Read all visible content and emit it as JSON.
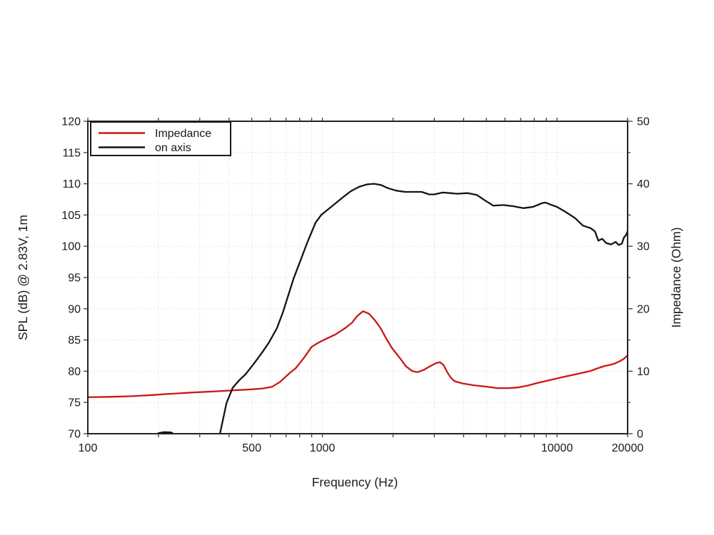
{
  "chart_data": {
    "type": "line",
    "title": "",
    "xlabel": "Frequency (Hz)",
    "ylabel_left": "SPL (dB) @ 2.83V, 1m",
    "ylabel_right": "Impedance (Ohm)",
    "x_scale": "log",
    "x_range": [
      100,
      20000
    ],
    "y_left_range": [
      70,
      120
    ],
    "y_right_range": [
      0,
      50
    ],
    "x_ticks": [
      100,
      200,
      300,
      400,
      500,
      600,
      700,
      800,
      900,
      1000,
      2000,
      3000,
      4000,
      5000,
      6000,
      7000,
      8000,
      9000,
      10000,
      20000
    ],
    "x_ticks_labeled": [
      [
        100,
        "100"
      ],
      [
        500,
        "500"
      ],
      [
        1000,
        "1000"
      ],
      [
        10000,
        "10000"
      ],
      [
        20000,
        "20000"
      ]
    ],
    "x_grid": [
      200,
      300,
      400,
      500,
      600,
      700,
      800,
      900,
      1000,
      2000,
      3000,
      4000,
      5000,
      6000,
      7000,
      8000,
      9000,
      10000
    ],
    "y_left_ticks_labeled": [
      [
        70,
        "70"
      ],
      [
        75,
        "75"
      ],
      [
        80,
        "80"
      ],
      [
        85,
        "85"
      ],
      [
        90,
        "90"
      ],
      [
        95,
        "95"
      ],
      [
        100,
        "100"
      ],
      [
        105,
        "105"
      ],
      [
        110,
        "110"
      ],
      [
        115,
        "115"
      ],
      [
        120,
        "120"
      ]
    ],
    "y_left_grid": [
      75,
      80,
      85,
      90,
      95,
      100,
      105,
      110,
      115
    ],
    "y_right_ticks_labeled": [
      [
        0,
        "0"
      ],
      [
        10,
        "10"
      ],
      [
        20,
        "20"
      ],
      [
        30,
        "30"
      ],
      [
        40,
        "40"
      ],
      [
        50,
        "50"
      ]
    ],
    "y_right_ticks_minor": [
      5,
      15,
      25,
      35,
      45
    ],
    "grid_color": "#e0e0e0",
    "frame_color": "#222222",
    "legend_position": "top-left",
    "series": [
      {
        "name": "Impedance",
        "axis": "right",
        "unit": "Ohm",
        "color": "#cb1717",
        "points": [
          [
            100,
            5.85
          ],
          [
            125,
            5.9
          ],
          [
            155,
            6.0
          ],
          [
            190,
            6.2
          ],
          [
            230,
            6.4
          ],
          [
            280,
            6.6
          ],
          [
            340,
            6.75
          ],
          [
            420,
            6.95
          ],
          [
            500,
            7.1
          ],
          [
            560,
            7.25
          ],
          [
            610,
            7.5
          ],
          [
            660,
            8.3
          ],
          [
            720,
            9.6
          ],
          [
            770,
            10.5
          ],
          [
            840,
            12.3
          ],
          [
            900,
            13.9
          ],
          [
            965,
            14.6
          ],
          [
            1040,
            15.2
          ],
          [
            1140,
            15.9
          ],
          [
            1250,
            16.9
          ],
          [
            1340,
            17.8
          ],
          [
            1405,
            18.8
          ],
          [
            1490,
            19.6
          ],
          [
            1580,
            19.2
          ],
          [
            1670,
            18.2
          ],
          [
            1770,
            16.9
          ],
          [
            1860,
            15.4
          ],
          [
            1980,
            13.7
          ],
          [
            2140,
            12.1
          ],
          [
            2270,
            10.8
          ],
          [
            2420,
            10.0
          ],
          [
            2550,
            9.85
          ],
          [
            2700,
            10.2
          ],
          [
            2880,
            10.8
          ],
          [
            3050,
            11.3
          ],
          [
            3170,
            11.45
          ],
          [
            3280,
            11.0
          ],
          [
            3400,
            9.9
          ],
          [
            3520,
            9.0
          ],
          [
            3660,
            8.4
          ],
          [
            3950,
            8.05
          ],
          [
            4420,
            7.75
          ],
          [
            4950,
            7.55
          ],
          [
            5570,
            7.3
          ],
          [
            6200,
            7.3
          ],
          [
            6800,
            7.4
          ],
          [
            7500,
            7.7
          ],
          [
            8230,
            8.1
          ],
          [
            9000,
            8.45
          ],
          [
            10000,
            8.85
          ],
          [
            10700,
            9.1
          ],
          [
            12000,
            9.5
          ],
          [
            13000,
            9.8
          ],
          [
            13900,
            10.05
          ],
          [
            15000,
            10.5
          ],
          [
            16000,
            10.85
          ],
          [
            16800,
            11.0
          ],
          [
            17540,
            11.2
          ],
          [
            18500,
            11.6
          ],
          [
            19300,
            12.0
          ],
          [
            20000,
            12.55
          ]
        ]
      },
      {
        "name": "on axis",
        "axis": "left",
        "unit": "dB",
        "color": "#141414",
        "points": [
          [
            192,
            69.3
          ],
          [
            200,
            70.1
          ],
          [
            212,
            70.25
          ],
          [
            226,
            70.2
          ],
          [
            240,
            69.7
          ],
          [
            258,
            68.2
          ],
          [
            285,
            66.2
          ],
          [
            315,
            66.6
          ],
          [
            342,
            68.4
          ],
          [
            366,
            70.0
          ],
          [
            390,
            74.9
          ],
          [
            415,
            77.4
          ],
          [
            443,
            78.6
          ],
          [
            470,
            79.5
          ],
          [
            510,
            81.2
          ],
          [
            556,
            83.1
          ],
          [
            592,
            84.6
          ],
          [
            640,
            86.9
          ],
          [
            678,
            89.4
          ],
          [
            755,
            94.9
          ],
          [
            812,
            98.0
          ],
          [
            862,
            100.6
          ],
          [
            905,
            102.5
          ],
          [
            936,
            103.8
          ],
          [
            988,
            105.0
          ],
          [
            1090,
            106.3
          ],
          [
            1220,
            107.8
          ],
          [
            1320,
            108.8
          ],
          [
            1430,
            109.5
          ],
          [
            1550,
            109.9
          ],
          [
            1660,
            110.0
          ],
          [
            1780,
            109.8
          ],
          [
            1900,
            109.3
          ],
          [
            2060,
            108.9
          ],
          [
            2250,
            108.7
          ],
          [
            2450,
            108.7
          ],
          [
            2650,
            108.7
          ],
          [
            2850,
            108.3
          ],
          [
            3000,
            108.3
          ],
          [
            3260,
            108.6
          ],
          [
            3500,
            108.5
          ],
          [
            3760,
            108.4
          ],
          [
            4170,
            108.5
          ],
          [
            4560,
            108.2
          ],
          [
            4950,
            107.3
          ],
          [
            5350,
            106.5
          ],
          [
            5900,
            106.6
          ],
          [
            6520,
            106.4
          ],
          [
            7180,
            106.1
          ],
          [
            7900,
            106.3
          ],
          [
            8640,
            106.9
          ],
          [
            8930,
            107.0
          ],
          [
            9500,
            106.6
          ],
          [
            10000,
            106.3
          ],
          [
            10870,
            105.5
          ],
          [
            11950,
            104.5
          ],
          [
            12900,
            103.3
          ],
          [
            13900,
            102.9
          ],
          [
            14500,
            102.4
          ],
          [
            15000,
            100.9
          ],
          [
            15600,
            101.2
          ],
          [
            16200,
            100.5
          ],
          [
            17000,
            100.3
          ],
          [
            17800,
            100.7
          ],
          [
            18300,
            100.2
          ],
          [
            18900,
            100.4
          ],
          [
            19300,
            101.4
          ],
          [
            19700,
            101.8
          ],
          [
            20000,
            102.4
          ]
        ]
      }
    ]
  }
}
